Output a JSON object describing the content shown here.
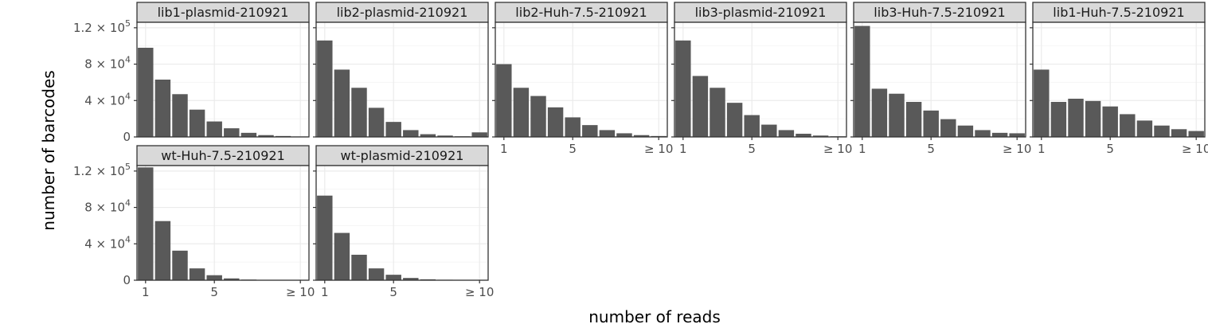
{
  "chart_data": {
    "type": "bar",
    "xlabel": "number of reads",
    "ylabel": "number of barcodes",
    "categories": [
      1,
      2,
      3,
      4,
      5,
      6,
      7,
      8,
      9,
      10
    ],
    "x_tick_labels": [
      "1",
      "5",
      "≥ 10"
    ],
    "y_tick_labels": [
      "0",
      "4 × 10",
      "8 × 10",
      "1.2 × 10"
    ],
    "y_tick_exponents": [
      "",
      "4",
      "4",
      "5"
    ],
    "y_ticks": [
      0,
      40000,
      80000,
      120000
    ],
    "ylim": [
      0,
      126000
    ],
    "grid": true,
    "colors": {
      "bar": "#595959",
      "strip": "#d9d9d9",
      "panel_border": "#333333",
      "grid": "#ebebeb"
    },
    "panels": [
      {
        "name": "lib1-plasmid-210921",
        "values": [
          98000,
          63000,
          47000,
          30000,
          17000,
          9500,
          4500,
          2000,
          1000,
          500
        ]
      },
      {
        "name": "lib2-plasmid-210921",
        "values": [
          106000,
          74000,
          54000,
          32000,
          16500,
          7500,
          3000,
          1500,
          700,
          5000
        ]
      },
      {
        "name": "lib2-Huh-7.5-210921",
        "values": [
          80000,
          54000,
          45000,
          32500,
          21500,
          13000,
          7500,
          4000,
          2000,
          1000
        ]
      },
      {
        "name": "lib3-plasmid-210921",
        "values": [
          106000,
          67000,
          54000,
          37500,
          24000,
          13500,
          7500,
          3500,
          1500,
          700
        ]
      },
      {
        "name": "lib3-Huh-7.5-210921",
        "values": [
          122000,
          53000,
          47500,
          38500,
          29000,
          19500,
          12500,
          7500,
          4500,
          4000
        ]
      },
      {
        "name": "lib1-Huh-7.5-210921",
        "values": [
          74000,
          38500,
          42000,
          39500,
          33500,
          25000,
          18000,
          12500,
          8500,
          6500
        ]
      },
      {
        "name": "wt-Huh-7.5-210921",
        "values": [
          124000,
          65000,
          32500,
          13000,
          5500,
          2000,
          700,
          300,
          150,
          100
        ]
      },
      {
        "name": "wt-plasmid-210921",
        "values": [
          93000,
          52000,
          28000,
          13000,
          6000,
          2500,
          1000,
          500,
          250,
          100
        ]
      }
    ]
  }
}
